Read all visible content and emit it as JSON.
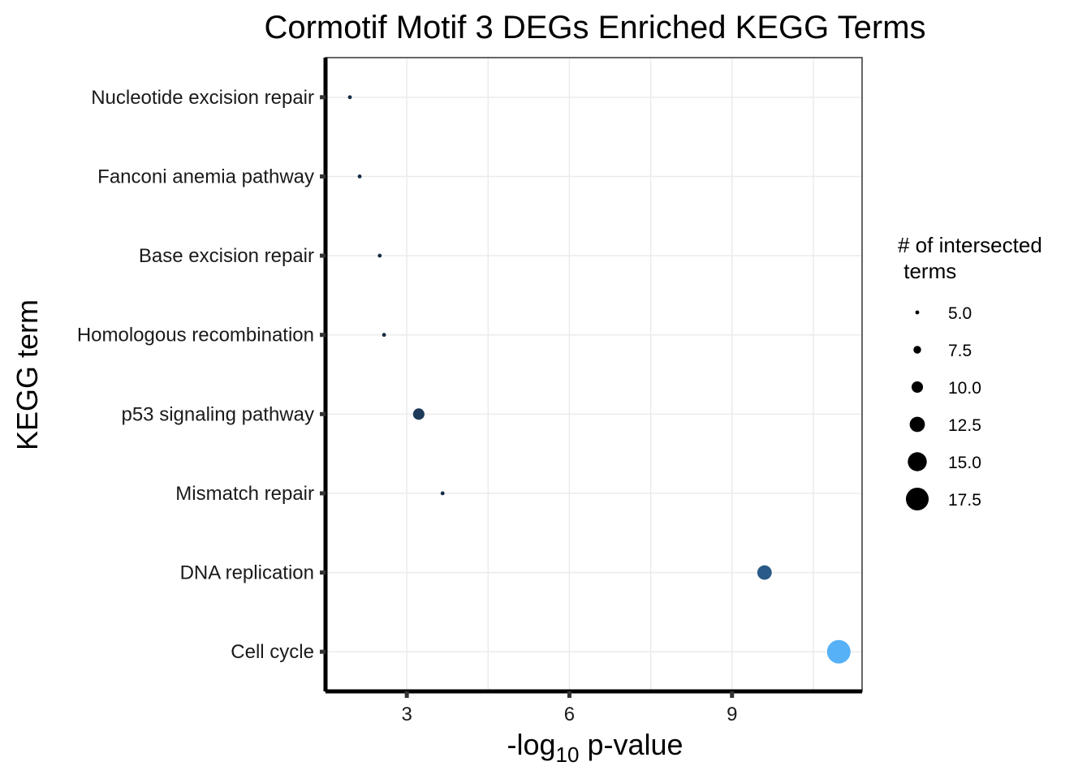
{
  "chart_data": {
    "type": "scatter",
    "title": "Cormotif Motif 3 DEGs Enriched KEGG Terms",
    "xlabel": {
      "prefix": "-log",
      "subscript": "10",
      "suffix": " p-value"
    },
    "ylabel": "KEGG term",
    "xlim": [
      1.5,
      11.4
    ],
    "x_ticks": [
      3,
      6,
      9
    ],
    "x_minor_gridlines": [
      4.5,
      7.5,
      10.5
    ],
    "grid": true,
    "categories": [
      "Nucleotide excision repair",
      "Fanconi anemia pathway",
      "Base excision repair",
      "Homologous recombination",
      "p53 signaling pathway",
      "Mismatch repair",
      "DNA replication",
      "Cell cycle"
    ],
    "points": [
      {
        "term": "Nucleotide excision repair",
        "x": 1.95,
        "size": 5,
        "color": "#132b43"
      },
      {
        "term": "Fanconi anemia pathway",
        "x": 2.13,
        "size": 5,
        "color": "#132b43"
      },
      {
        "term": "Base excision repair",
        "x": 2.5,
        "size": 5,
        "color": "#132b43"
      },
      {
        "term": "Homologous recombination",
        "x": 2.58,
        "size": 5,
        "color": "#132b43"
      },
      {
        "term": "p53 signaling pathway",
        "x": 3.22,
        "size": 10,
        "color": "#1d3a5a"
      },
      {
        "term": "Mismatch repair",
        "x": 3.66,
        "size": 5,
        "color": "#132b43"
      },
      {
        "term": "DNA replication",
        "x": 9.6,
        "size": 12,
        "color": "#2a5a87"
      },
      {
        "term": "Cell cycle",
        "x": 10.97,
        "size": 18,
        "color": "#56b1f7"
      }
    ],
    "legend": {
      "title_line1": "# of intersected",
      "title_line2": " terms",
      "placement": "right",
      "entries": [
        "5.0",
        "7.5",
        "10.0",
        "12.5",
        "15.0",
        "17.5"
      ],
      "entry_values": [
        5,
        7.5,
        10,
        12.5,
        15,
        17.5
      ]
    }
  }
}
